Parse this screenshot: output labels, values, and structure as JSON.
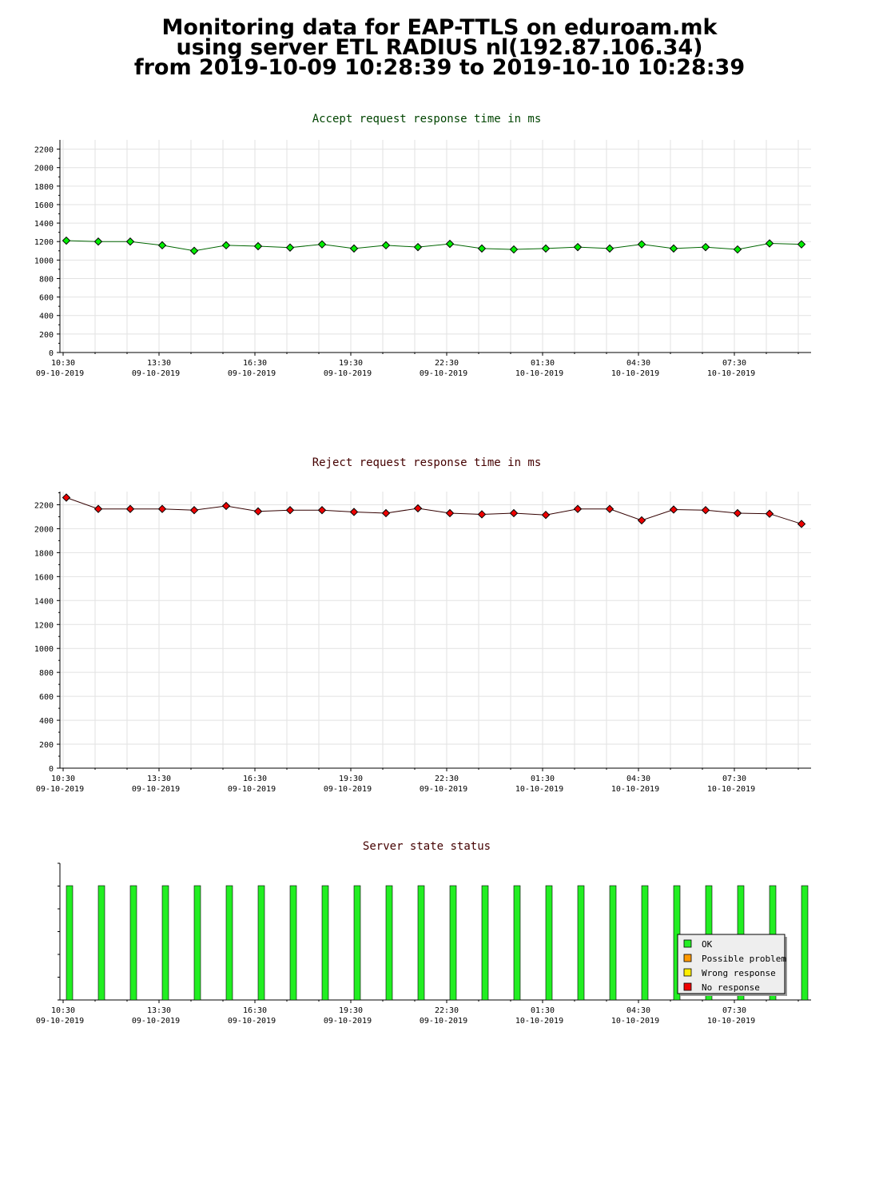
{
  "page": {
    "title_lines": [
      "Monitoring data for EAP-TTLS on eduroam.mk",
      "using server ETL RADIUS nl(192.87.106.34)",
      "from 2019-10-09 10:28:39 to 2019-10-10 10:28:39"
    ]
  },
  "x_tick_labels": [
    {
      "time": "10:30",
      "date": "09-10-2019"
    },
    {
      "time": "13:30",
      "date": "09-10-2019"
    },
    {
      "time": "16:30",
      "date": "09-10-2019"
    },
    {
      "time": "19:30",
      "date": "09-10-2019"
    },
    {
      "time": "22:30",
      "date": "09-10-2019"
    },
    {
      "time": "01:30",
      "date": "10-10-2019"
    },
    {
      "time": "04:30",
      "date": "10-10-2019"
    },
    {
      "time": "07:30",
      "date": "10-10-2019"
    }
  ],
  "chart_data": [
    {
      "type": "line",
      "title": "Accept request response time in ms",
      "title_color": "#004400",
      "marker_color": "#00ee00",
      "line_color": "#006600",
      "ylim": [
        0,
        2300
      ],
      "yticks": [
        0,
        200,
        400,
        600,
        800,
        1000,
        1200,
        1400,
        1600,
        1800,
        2000,
        2200
      ],
      "x": [
        "2019-10-09 10:28",
        "2019-10-09 11:28",
        "2019-10-09 12:28",
        "2019-10-09 13:28",
        "2019-10-09 14:28",
        "2019-10-09 15:28",
        "2019-10-09 16:28",
        "2019-10-09 17:28",
        "2019-10-09 18:28",
        "2019-10-09 19:28",
        "2019-10-09 20:28",
        "2019-10-09 21:28",
        "2019-10-09 22:28",
        "2019-10-09 23:28",
        "2019-10-10 00:28",
        "2019-10-10 01:28",
        "2019-10-10 02:28",
        "2019-10-10 03:28",
        "2019-10-10 04:28",
        "2019-10-10 05:28",
        "2019-10-10 06:28",
        "2019-10-10 07:28",
        "2019-10-10 08:28",
        "2019-10-10 09:28"
      ],
      "values": [
        1210,
        1200,
        1200,
        1160,
        1100,
        1160,
        1150,
        1135,
        1170,
        1125,
        1160,
        1140,
        1175,
        1125,
        1115,
        1125,
        1140,
        1125,
        1170,
        1125,
        1140,
        1115,
        1180,
        1170
      ],
      "grid": true
    },
    {
      "type": "line",
      "title": "Reject request response time in ms",
      "title_color": "#440000",
      "marker_color": "#ee0000",
      "line_color": "#330000",
      "ylim": [
        0,
        2310
      ],
      "yticks": [
        0,
        200,
        400,
        600,
        800,
        1000,
        1200,
        1400,
        1600,
        1800,
        2000,
        2200
      ],
      "x": [
        "2019-10-09 10:28",
        "2019-10-09 11:28",
        "2019-10-09 12:28",
        "2019-10-09 13:28",
        "2019-10-09 14:28",
        "2019-10-09 15:28",
        "2019-10-09 16:28",
        "2019-10-09 17:28",
        "2019-10-09 18:28",
        "2019-10-09 19:28",
        "2019-10-09 20:28",
        "2019-10-09 21:28",
        "2019-10-09 22:28",
        "2019-10-09 23:28",
        "2019-10-10 00:28",
        "2019-10-10 01:28",
        "2019-10-10 02:28",
        "2019-10-10 03:28",
        "2019-10-10 04:28",
        "2019-10-10 05:28",
        "2019-10-10 06:28",
        "2019-10-10 07:28",
        "2019-10-10 08:28",
        "2019-10-10 09:28"
      ],
      "values": [
        2260,
        2165,
        2165,
        2165,
        2155,
        2190,
        2145,
        2155,
        2155,
        2140,
        2130,
        2170,
        2130,
        2120,
        2130,
        2115,
        2165,
        2165,
        2070,
        2160,
        2155,
        2130,
        2125,
        2040
      ],
      "grid": true
    },
    {
      "type": "bar",
      "title": "Server state status",
      "title_color": "#440000",
      "x": [
        "2019-10-09 10:28",
        "2019-10-09 11:28",
        "2019-10-09 12:28",
        "2019-10-09 13:28",
        "2019-10-09 14:28",
        "2019-10-09 15:28",
        "2019-10-09 16:28",
        "2019-10-09 17:28",
        "2019-10-09 18:28",
        "2019-10-09 19:28",
        "2019-10-09 20:28",
        "2019-10-09 21:28",
        "2019-10-09 22:28",
        "2019-10-09 23:28",
        "2019-10-10 00:28",
        "2019-10-10 01:28",
        "2019-10-10 02:28",
        "2019-10-10 03:28",
        "2019-10-10 04:28",
        "2019-10-10 05:28",
        "2019-10-10 06:28",
        "2019-10-10 07:28",
        "2019-10-10 08:28",
        "2019-10-10 09:28"
      ],
      "states": [
        "OK",
        "OK",
        "OK",
        "OK",
        "OK",
        "OK",
        "OK",
        "OK",
        "OK",
        "OK",
        "OK",
        "OK",
        "OK",
        "OK",
        "OK",
        "OK",
        "OK",
        "OK",
        "OK",
        "OK",
        "OK",
        "OK",
        "OK",
        "OK"
      ],
      "legend_position": "bottom-right",
      "legend": [
        {
          "label": "OK",
          "color": "#22ee22"
        },
        {
          "label": "Possible problem",
          "color": "#ff9900"
        },
        {
          "label": "Wrong response",
          "color": "#ffee00"
        },
        {
          "label": "No response",
          "color": "#ee0000"
        }
      ]
    }
  ]
}
